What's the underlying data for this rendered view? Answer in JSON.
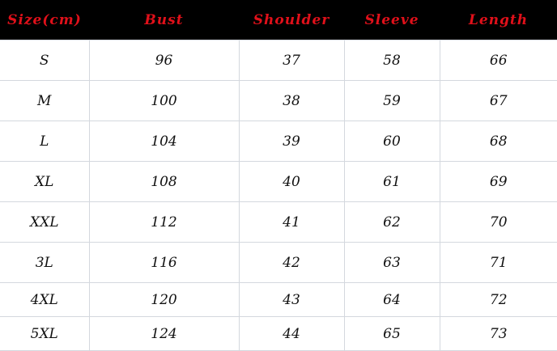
{
  "headers": [
    "Size(cm)",
    "Bust",
    "Shoulder",
    "Sleeve",
    "Length"
  ],
  "rows": [
    [
      "S",
      "96",
      "37",
      "58",
      "66"
    ],
    [
      "M",
      "100",
      "38",
      "59",
      "67"
    ],
    [
      "L",
      "104",
      "39",
      "60",
      "68"
    ],
    [
      "XL",
      "108",
      "40",
      "61",
      "69"
    ],
    [
      "XXL",
      "112",
      "41",
      "62",
      "70"
    ],
    [
      "3L",
      "116",
      "42",
      "63",
      "71"
    ],
    [
      "4XL",
      "120",
      "43",
      "64",
      "72"
    ],
    [
      "5XL",
      "124",
      "44",
      "65",
      "73"
    ]
  ],
  "colors": {
    "header_bg": "#000000",
    "header_text": "#e0101a",
    "grid": "#d4d8de"
  }
}
